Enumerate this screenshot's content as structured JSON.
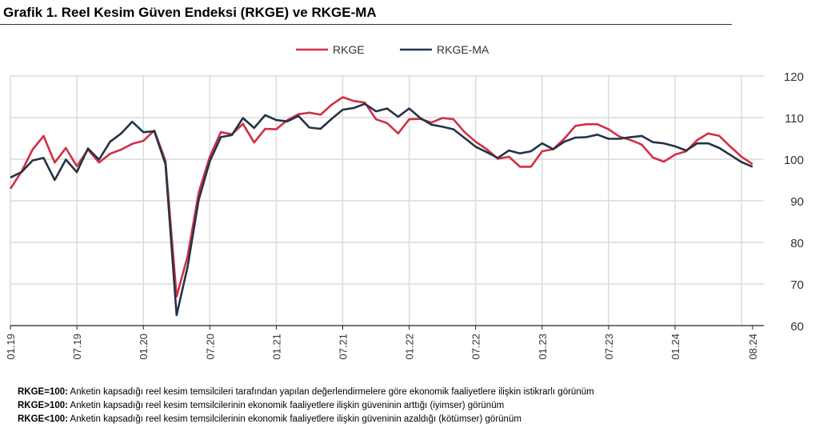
{
  "title": "Grafik 1. Reel Kesim Güven Endeksi (RKGE) ve RKGE-MA",
  "chart_data": {
    "type": "line",
    "title": "Grafik 1. Reel Kesim Güven Endeksi (RKGE) ve RKGE-MA",
    "x_start": "01.19",
    "x_end": "08.24",
    "x_tick_labels": [
      "01.19",
      "07.19",
      "01.20",
      "07.20",
      "01.21",
      "07.21",
      "01.22",
      "07.22",
      "01.23",
      "07.23",
      "01.24",
      "08.24"
    ],
    "x_tick_indices": [
      0,
      6,
      12,
      18,
      24,
      30,
      36,
      42,
      48,
      54,
      60,
      67
    ],
    "ylim": [
      60,
      120
    ],
    "y_ticks": [
      60,
      70,
      80,
      90,
      100,
      110,
      120
    ],
    "y_axis_side": "right",
    "grid": true,
    "legend_position": "top-center",
    "series": [
      {
        "name": "RKGE",
        "color": "#d22f45",
        "values": [
          92.9,
          97,
          102.3,
          105.6,
          99.2,
          102.7,
          98.3,
          102.3,
          99.2,
          101.3,
          102.3,
          103.7,
          104.4,
          106.9,
          99.6,
          67,
          76.7,
          92,
          100.6,
          106.5,
          106,
          108.5,
          104,
          107.3,
          107.2,
          109.4,
          110.8,
          111.2,
          110.7,
          113.1,
          114.9,
          114,
          113.6,
          109.6,
          108.7,
          106.2,
          109.6,
          109.7,
          108.8,
          109.9,
          109.6,
          106.5,
          104.2,
          102.4,
          100.1,
          100.6,
          98.2,
          98.2,
          101.9,
          102.4,
          104.9,
          108,
          108.4,
          108.4,
          107.2,
          105.4,
          104.6,
          103.5,
          100.4,
          99.4,
          101.1,
          101.9,
          104.6,
          106.2,
          105.6,
          103,
          100.6,
          98.8
        ]
      },
      {
        "name": "RKGE-MA",
        "color": "#233447",
        "values": [
          95.6,
          96.9,
          99.7,
          100.3,
          95,
          99.9,
          96.9,
          102.6,
          99.9,
          104.2,
          106.2,
          109,
          106.5,
          106.7,
          98.8,
          62.5,
          74.2,
          90.2,
          99.5,
          105.3,
          105.8,
          109.9,
          107.5,
          110.6,
          109.4,
          109.1,
          110.4,
          107.6,
          107.3,
          109.7,
          111.9,
          112.3,
          113.3,
          111.5,
          112.2,
          110.2,
          112.2,
          109.9,
          108.3,
          107.8,
          107.2,
          105.1,
          103,
          101.7,
          100.3,
          102.1,
          101.4,
          101.9,
          103.8,
          102.4,
          104.2,
          105.2,
          105.3,
          105.9,
          104.9,
          104.9,
          105.3,
          105.6,
          104.1,
          103.8,
          103.1,
          102.1,
          103.8,
          103.8,
          102.7,
          101,
          99.3,
          98.2
        ]
      }
    ]
  },
  "notes": [
    {
      "key": "RKGE=100:",
      "text": " Anketin kapsadığı reel kesim temsilcileri tarafından yapılan değerlendirmelere göre ekonomik faaliyetlere ilişkin istikrarlı görünüm"
    },
    {
      "key": "RKGE>100:",
      "text": " Anketin kapsadığı reel kesim temsilcilerinin ekonomik faaliyetlere ilişkin güveninin arttığı (iyimser) görünüm"
    },
    {
      "key": "RKGE<100:",
      "text": " Anketin kapsadığı reel kesim temsilcilerinin ekonomik faaliyetlere ilişkin güveninin azaldığı (kötümser) görünüm"
    }
  ]
}
